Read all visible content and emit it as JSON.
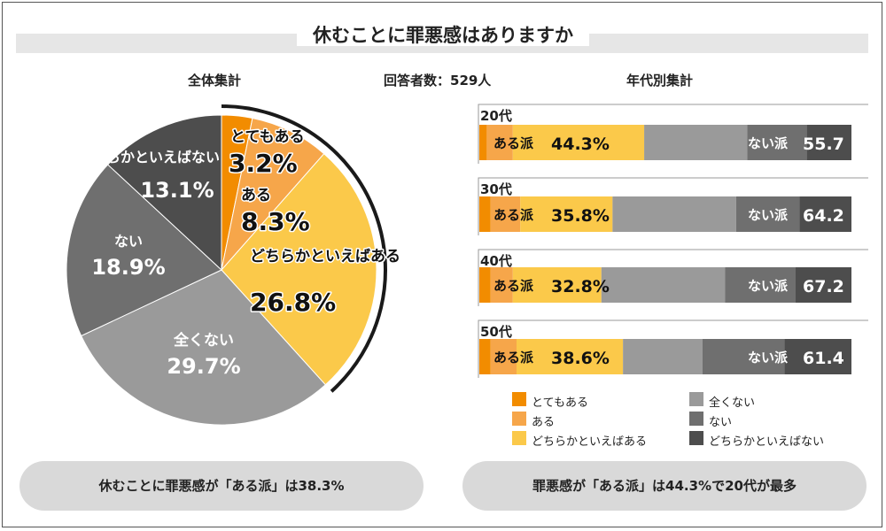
{
  "title": "休むことに罪悪感はありますか",
  "headers": {
    "overall": "全体集計",
    "respondents": "回答者数：529人",
    "by_age": "年代別集計"
  },
  "colors": {
    "とてもある": "#f28c00",
    "ある": "#f6a64a",
    "どちらかといえばある": "#fbc94a",
    "全くない": "#9a9a9a",
    "ない": "#6f6f6f",
    "どちらかといえばない": "#4d4d4d"
  },
  "chart_data": [
    {
      "type": "pie",
      "title": "全体集計",
      "slices": [
        {
          "label": "とてもある",
          "value": 3.2,
          "value_text": "3.2%"
        },
        {
          "label": "ある",
          "value": 8.3,
          "value_text": "8.3%"
        },
        {
          "label": "どちらかといえばある",
          "value": 26.8,
          "value_text": "26.8%"
        },
        {
          "label": "全くない",
          "value": 29.7,
          "value_text": "29.7%"
        },
        {
          "label": "ない",
          "value": 18.9,
          "value_text": "18.9%"
        },
        {
          "label": "どちらかといえばない",
          "value": 13.1,
          "value_text": "13.1%"
        }
      ]
    },
    {
      "type": "bar",
      "orientation": "horizontal",
      "stacked": true,
      "title": "年代別集計",
      "categories": [
        "20代",
        "30代",
        "40代",
        "50代"
      ],
      "series": [
        {
          "name": "とてもある",
          "values": [
            2,
            3,
            3,
            3
          ]
        },
        {
          "name": "ある",
          "values": [
            7,
            8,
            6,
            7
          ]
        },
        {
          "name": "どちらかといえばある",
          "values": [
            35.3,
            24.8,
            23.8,
            28.6
          ]
        },
        {
          "name": "全くない",
          "values": [
            27.7,
            33.2,
            33.2,
            21.4
          ]
        },
        {
          "name": "ない",
          "values": [
            16,
            17,
            19,
            22
          ]
        },
        {
          "name": "どちらかといえばない",
          "values": [
            12,
            14,
            15,
            18
          ]
        }
      ],
      "group_labels": {
        "yes": "ある派",
        "no": "ない派"
      },
      "yes_totals": [
        "44.3%",
        "35.8%",
        "32.8%",
        "38.6%"
      ],
      "no_totals": [
        "55.7",
        "64.2",
        "67.2",
        "61.4"
      ],
      "legend": [
        "とてもある",
        "ある",
        "どちらかといえばある",
        "全くない",
        "ない",
        "どちらかといえばない"
      ]
    }
  ],
  "summaries": [
    "休むことに罪悪感が「ある派」は38.3%",
    "罪悪感が「ある派」は44.3%で20代が最多"
  ]
}
